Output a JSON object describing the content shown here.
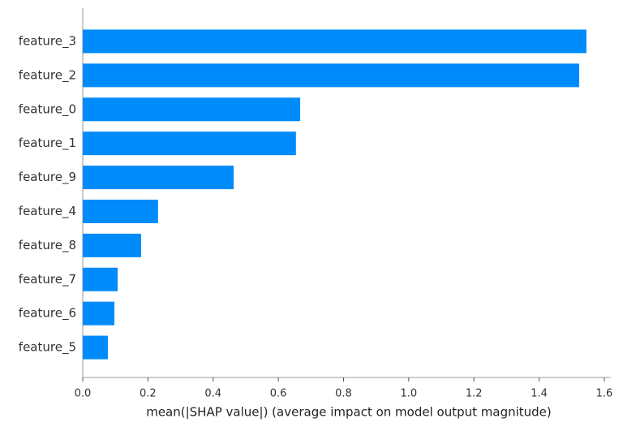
{
  "chart_data": {
    "type": "bar",
    "orientation": "horizontal",
    "xlabel": "mean(|SHAP value|) (average impact on model output magnitude)",
    "categories": [
      "feature_3",
      "feature_2",
      "feature_0",
      "feature_1",
      "feature_9",
      "feature_4",
      "feature_8",
      "feature_7",
      "feature_6",
      "feature_5"
    ],
    "values": [
      1.545,
      1.523,
      0.667,
      0.654,
      0.463,
      0.231,
      0.179,
      0.107,
      0.097,
      0.077
    ],
    "color": "#008bfb",
    "xlim": [
      0,
      1.62
    ],
    "xticks": [
      {
        "value": 0,
        "label": "0.0"
      },
      0.2,
      0.4,
      0.6,
      0.8,
      {
        "value": 1,
        "label": "1.0"
      },
      1.2,
      1.4,
      1.6
    ],
    "grid": false
  }
}
